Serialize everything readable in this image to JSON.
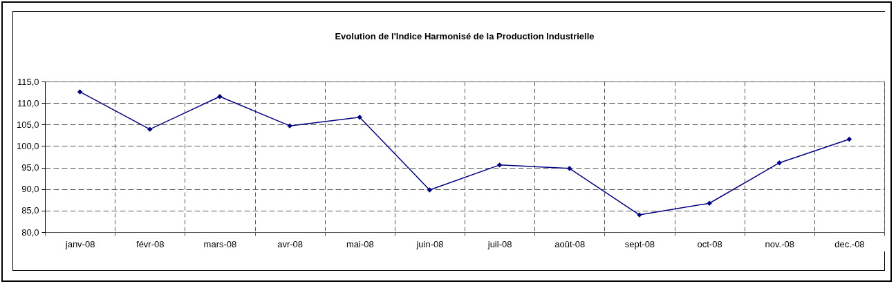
{
  "chart_data": {
    "type": "line",
    "title": "Evolution de l'Indice Harmonisé de la Production Industrielle",
    "categories": [
      "janv-08",
      "févr-08",
      "mars-08",
      "avr-08",
      "mai-08",
      "juin-08",
      "juil-08",
      "août-08",
      "sept-08",
      "oct-08",
      "nov.-08",
      "dec.-08"
    ],
    "series": [
      {
        "color": "#000080",
        "values": [
          112.6,
          103.9,
          111.5,
          104.7,
          106.7,
          89.8,
          95.6,
          94.8,
          84.0,
          86.7,
          96.1,
          101.6
        ]
      }
    ],
    "ylim": [
      80,
      115
    ],
    "yticks": [
      {
        "value": 80,
        "label": "80,0"
      },
      {
        "value": 85,
        "label": "85,0"
      },
      {
        "value": 90,
        "label": "90,0"
      },
      {
        "value": 95,
        "label": "95,0"
      },
      {
        "value": 100,
        "label": "100,0"
      },
      {
        "value": 105,
        "label": "105,0"
      },
      {
        "value": 110,
        "label": "110,0"
      },
      {
        "value": 115,
        "label": "115,0"
      }
    ],
    "grid": true,
    "marker": "diamond",
    "line_style": "solid",
    "legend": false
  }
}
